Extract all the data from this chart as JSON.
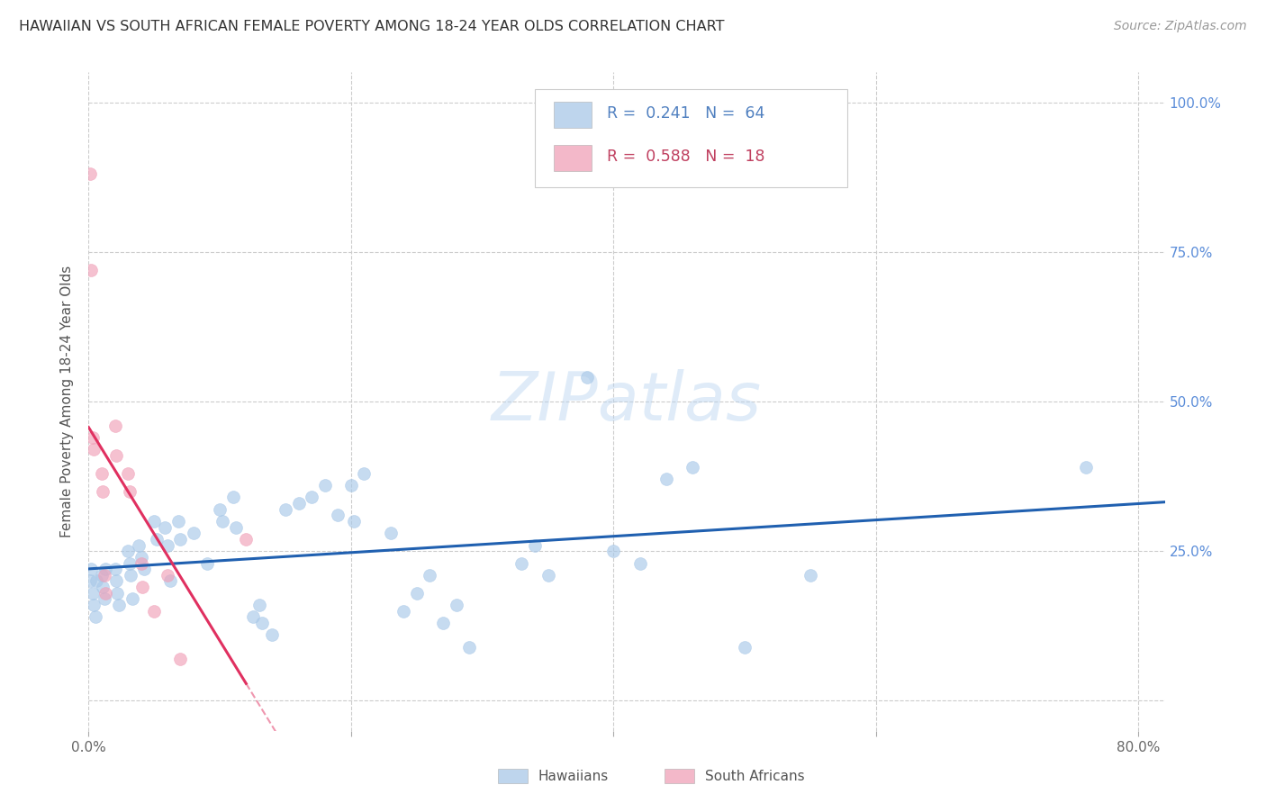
{
  "title": "HAWAIIAN VS SOUTH AFRICAN FEMALE POVERTY AMONG 18-24 YEAR OLDS CORRELATION CHART",
  "source": "Source: ZipAtlas.com",
  "ylabel": "Female Poverty Among 18-24 Year Olds",
  "xlim": [
    0.0,
    0.82
  ],
  "ylim": [
    -0.05,
    1.05
  ],
  "hawaiian_R": 0.241,
  "hawaiian_N": 64,
  "sa_R": 0.588,
  "sa_N": 18,
  "blue_color": "#a8c8e8",
  "pink_color": "#f0a0b8",
  "blue_line_color": "#2060b0",
  "pink_line_color": "#e03060",
  "hawaiian_x": [
    0.001,
    0.002,
    0.003,
    0.004,
    0.005,
    0.006,
    0.01,
    0.011,
    0.012,
    0.013,
    0.02,
    0.021,
    0.022,
    0.023,
    0.03,
    0.031,
    0.032,
    0.033,
    0.038,
    0.04,
    0.042,
    0.05,
    0.052,
    0.058,
    0.06,
    0.062,
    0.068,
    0.07,
    0.08,
    0.09,
    0.1,
    0.102,
    0.11,
    0.112,
    0.125,
    0.13,
    0.132,
    0.14,
    0.15,
    0.16,
    0.17,
    0.18,
    0.19,
    0.2,
    0.202,
    0.21,
    0.23,
    0.24,
    0.25,
    0.26,
    0.27,
    0.28,
    0.29,
    0.33,
    0.34,
    0.35,
    0.38,
    0.4,
    0.42,
    0.44,
    0.46,
    0.5,
    0.55,
    0.76
  ],
  "hawaiian_y": [
    0.2,
    0.22,
    0.18,
    0.16,
    0.14,
    0.2,
    0.21,
    0.19,
    0.17,
    0.22,
    0.22,
    0.2,
    0.18,
    0.16,
    0.25,
    0.23,
    0.21,
    0.17,
    0.26,
    0.24,
    0.22,
    0.3,
    0.27,
    0.29,
    0.26,
    0.2,
    0.3,
    0.27,
    0.28,
    0.23,
    0.32,
    0.3,
    0.34,
    0.29,
    0.14,
    0.16,
    0.13,
    0.11,
    0.32,
    0.33,
    0.34,
    0.36,
    0.31,
    0.36,
    0.3,
    0.38,
    0.28,
    0.15,
    0.18,
    0.21,
    0.13,
    0.16,
    0.09,
    0.23,
    0.26,
    0.21,
    0.54,
    0.25,
    0.23,
    0.37,
    0.39,
    0.09,
    0.21,
    0.39
  ],
  "sa_x": [
    0.001,
    0.002,
    0.003,
    0.004,
    0.01,
    0.011,
    0.012,
    0.013,
    0.02,
    0.021,
    0.03,
    0.031,
    0.04,
    0.041,
    0.05,
    0.06,
    0.07,
    0.12
  ],
  "sa_y": [
    0.88,
    0.72,
    0.44,
    0.42,
    0.38,
    0.35,
    0.21,
    0.18,
    0.46,
    0.41,
    0.38,
    0.35,
    0.23,
    0.19,
    0.15,
    0.21,
    0.07,
    0.27
  ],
  "x_tick_positions": [
    0.0,
    0.2,
    0.4,
    0.6,
    0.8
  ],
  "x_tick_labels": [
    "0.0%",
    "",
    "",
    "",
    "80.0%"
  ],
  "y_tick_positions": [
    0.0,
    0.25,
    0.5,
    0.75,
    1.0
  ],
  "y_tick_labels_right": [
    "",
    "25.0%",
    "50.0%",
    "75.0%",
    "100.0%"
  ]
}
